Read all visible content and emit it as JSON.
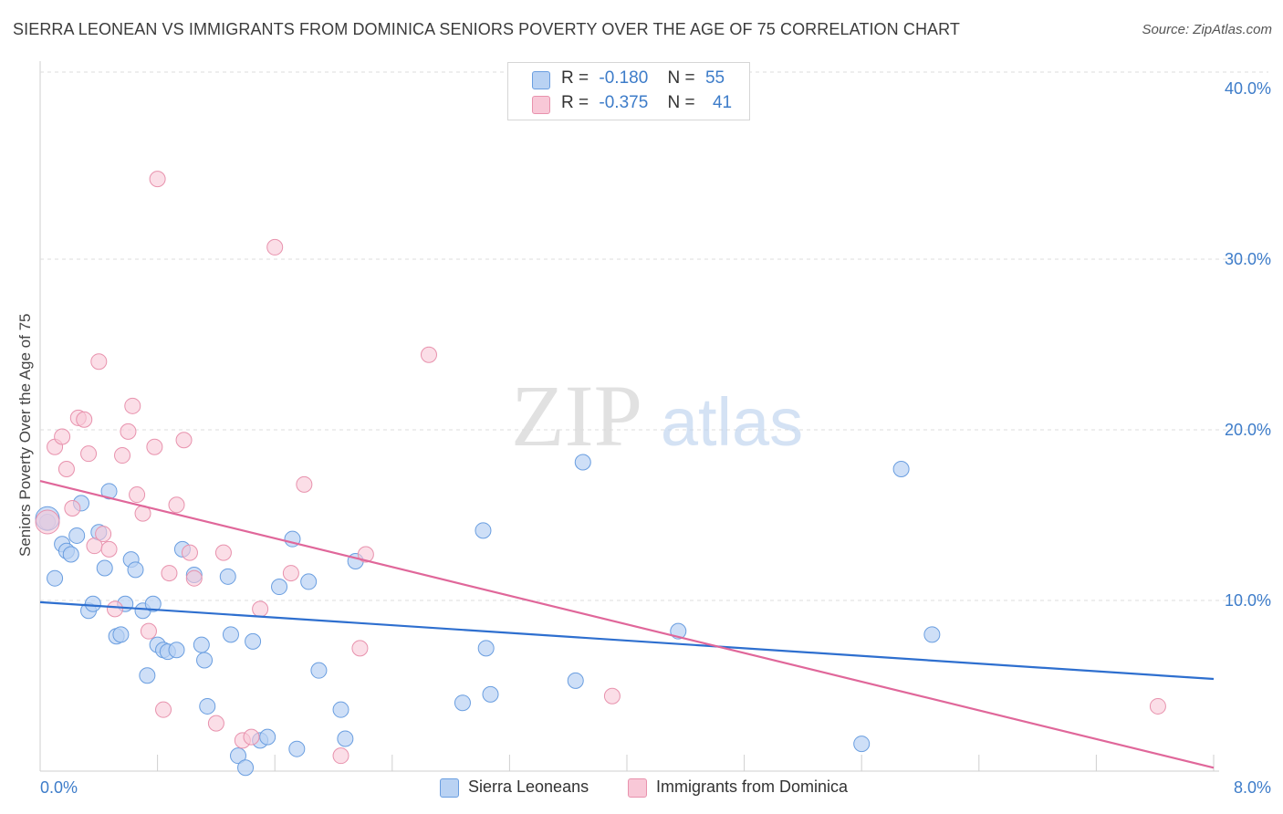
{
  "header": {
    "title": "SIERRA LEONEAN VS IMMIGRANTS FROM DOMINICA SENIORS POVERTY OVER THE AGE OF 75 CORRELATION CHART",
    "source": "Source: ZipAtlas.com"
  },
  "watermark": {
    "zip": "ZIP",
    "atlas": "atlas"
  },
  "legend": {
    "rows": [
      {
        "r_label": "R =",
        "r_value": "-0.180",
        "n_label": "N =",
        "n_value": "55"
      },
      {
        "r_label": "R =",
        "r_value": "-0.375",
        "n_label": "N =",
        "n_value": "41"
      }
    ]
  },
  "bottom_legend": {
    "series_a": "Sierra Leoneans",
    "series_b": "Immigrants from Dominica"
  },
  "chart_data": {
    "type": "scatter",
    "title": "SIERRA LEONEAN VS IMMIGRANTS FROM DOMINICA SENIORS POVERTY OVER THE AGE OF 75 CORRELATION CHART",
    "xlabel": "",
    "ylabel": "Seniors Poverty Over the Age of 75",
    "xlim": [
      0,
      8
    ],
    "ylim": [
      0,
      40.0
    ],
    "x_tick_labels": [
      "0.0%",
      "8.0%"
    ],
    "y_ticks": [
      10,
      20,
      30,
      40
    ],
    "y_tick_labels": [
      "10.0%",
      "20.0%",
      "30.0%",
      "40.0%"
    ],
    "grid": true,
    "legend_position": "top-center",
    "colors": {
      "series_a": "#6a9ee0",
      "series_a_fill": "#b9d2f3",
      "series_a_line": "#2e6fcf",
      "series_b": "#e892ad",
      "series_b_fill": "#f8c8d7",
      "series_b_line": "#e0679a",
      "tick_text": "#3d7cc9"
    },
    "series": [
      {
        "name": "Sierra Leoneans",
        "trend": {
          "x": [
            0,
            8
          ],
          "y": [
            9.9,
            5.4
          ]
        },
        "points": [
          [
            0.05,
            14.6
          ],
          [
            0.1,
            11.3
          ],
          [
            0.15,
            13.3
          ],
          [
            0.18,
            12.9
          ],
          [
            0.21,
            12.7
          ],
          [
            0.25,
            13.8
          ],
          [
            0.28,
            15.7
          ],
          [
            0.33,
            9.4
          ],
          [
            0.36,
            9.8
          ],
          [
            0.4,
            14.0
          ],
          [
            0.44,
            11.9
          ],
          [
            0.47,
            16.4
          ],
          [
            0.52,
            7.9
          ],
          [
            0.55,
            8.0
          ],
          [
            0.58,
            9.8
          ],
          [
            0.62,
            12.4
          ],
          [
            0.65,
            11.8
          ],
          [
            0.7,
            9.4
          ],
          [
            0.73,
            5.6
          ],
          [
            0.77,
            9.8
          ],
          [
            0.8,
            7.4
          ],
          [
            0.84,
            7.1
          ],
          [
            0.87,
            7.0
          ],
          [
            0.93,
            7.1
          ],
          [
            0.97,
            13.0
          ],
          [
            1.05,
            11.5
          ],
          [
            1.1,
            7.4
          ],
          [
            1.12,
            6.5
          ],
          [
            1.14,
            3.8
          ],
          [
            1.28,
            11.4
          ],
          [
            1.3,
            8.0
          ],
          [
            1.35,
            0.9
          ],
          [
            1.4,
            0.2
          ],
          [
            1.45,
            7.6
          ],
          [
            1.5,
            1.8
          ],
          [
            1.55,
            2.0
          ],
          [
            1.63,
            10.8
          ],
          [
            1.72,
            13.6
          ],
          [
            1.75,
            1.3
          ],
          [
            1.83,
            11.1
          ],
          [
            1.9,
            5.9
          ],
          [
            2.05,
            3.6
          ],
          [
            2.08,
            1.9
          ],
          [
            2.15,
            12.3
          ],
          [
            2.88,
            4.0
          ],
          [
            3.02,
            14.1
          ],
          [
            3.04,
            7.2
          ],
          [
            3.07,
            4.5
          ],
          [
            3.65,
            5.3
          ],
          [
            3.7,
            18.1
          ],
          [
            4.35,
            8.2
          ],
          [
            5.6,
            1.6
          ],
          [
            5.87,
            17.7
          ],
          [
            6.08,
            8.0
          ],
          [
            0.05,
            14.8
          ]
        ]
      },
      {
        "name": "Immigrants from Dominica",
        "trend": {
          "x": [
            0,
            8
          ],
          "y": [
            17.0,
            0.2
          ]
        },
        "points": [
          [
            0.05,
            14.6
          ],
          [
            0.1,
            19.0
          ],
          [
            0.15,
            19.6
          ],
          [
            0.18,
            17.7
          ],
          [
            0.22,
            15.4
          ],
          [
            0.26,
            20.7
          ],
          [
            0.3,
            20.6
          ],
          [
            0.33,
            18.6
          ],
          [
            0.37,
            13.2
          ],
          [
            0.4,
            24.0
          ],
          [
            0.43,
            13.9
          ],
          [
            0.47,
            13.0
          ],
          [
            0.51,
            9.5
          ],
          [
            0.56,
            18.5
          ],
          [
            0.6,
            19.9
          ],
          [
            0.63,
            21.4
          ],
          [
            0.66,
            16.2
          ],
          [
            0.7,
            15.1
          ],
          [
            0.74,
            8.2
          ],
          [
            0.78,
            19.0
          ],
          [
            0.8,
            34.7
          ],
          [
            0.84,
            3.6
          ],
          [
            0.88,
            11.6
          ],
          [
            0.93,
            15.6
          ],
          [
            0.98,
            19.4
          ],
          [
            1.02,
            12.8
          ],
          [
            1.05,
            11.3
          ],
          [
            1.2,
            2.8
          ],
          [
            1.25,
            12.8
          ],
          [
            1.38,
            1.8
          ],
          [
            1.44,
            2.0
          ],
          [
            1.5,
            9.5
          ],
          [
            1.6,
            30.7
          ],
          [
            1.71,
            11.6
          ],
          [
            1.8,
            16.8
          ],
          [
            2.05,
            0.9
          ],
          [
            2.18,
            7.2
          ],
          [
            2.22,
            12.7
          ],
          [
            2.65,
            24.4
          ],
          [
            3.9,
            4.4
          ],
          [
            7.62,
            3.8
          ]
        ]
      }
    ]
  }
}
